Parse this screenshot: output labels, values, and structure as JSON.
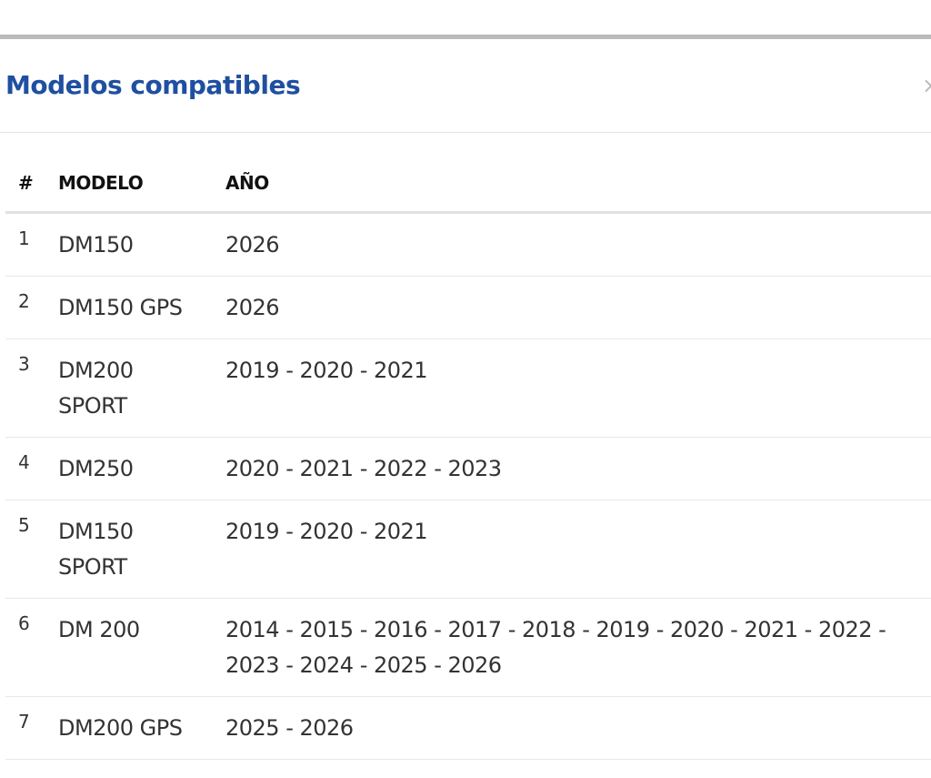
{
  "modal": {
    "title": "Modelos compatibles",
    "table": {
      "headers": [
        "#",
        "MODELO",
        "AÑO"
      ],
      "rows": [
        [
          "1",
          "DM150",
          "2026"
        ],
        [
          "2",
          "DM150 GPS",
          "2026"
        ],
        [
          "3",
          "DM200 SPORT",
          "2019 - 2020 - 2021"
        ],
        [
          "4",
          "DM250",
          "2020 - 2021 - 2022 - 2023"
        ],
        [
          "5",
          "DM150 SPORT",
          "2019 - 2020 - 2021"
        ],
        [
          "6",
          "DM 200",
          "2014 - 2015 - 2016 - 2017 - 2018 - 2019 - 2020 - 2021 - 2022 - 2023 - 2024 - 2025 - 2026"
        ],
        [
          "7",
          "DM200 GPS",
          "2025 - 2026"
        ]
      ]
    }
  }
}
